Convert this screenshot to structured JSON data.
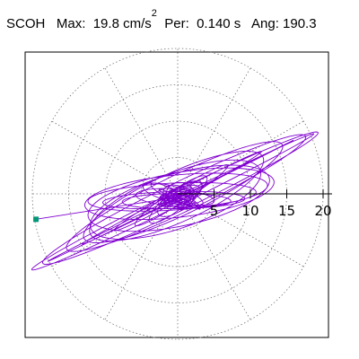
{
  "header": {
    "station": "SCOH",
    "max_label": "Max:",
    "max_value": "19.8",
    "max_unit": "cm/s",
    "max_unit_exp": "2",
    "per_label": "Per:",
    "per_value": "0.140 s",
    "ang_label": "Ang:",
    "ang_value": "190.3"
  },
  "chart_data": {
    "type": "polar-hodogram",
    "radial_ticks": [
      5,
      10,
      15,
      20
    ],
    "tick_labels": [
      "5",
      "10",
      "15",
      "20"
    ],
    "rmax": 20,
    "max_amplitude": 19.8,
    "angle_deg": 190.3,
    "angular_grid_step_deg": 30,
    "grid": true,
    "line_color": "#8000d0",
    "marker_color": "#009977",
    "end_point": {
      "x": -19.5,
      "y": -3.5
    }
  }
}
